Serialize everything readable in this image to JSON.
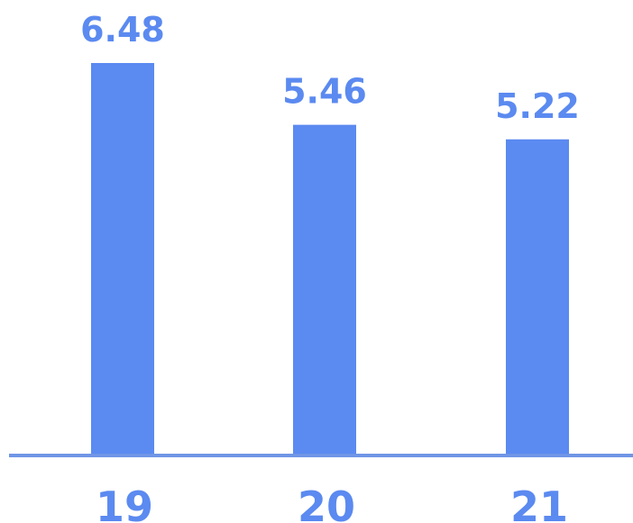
{
  "chart_data": {
    "type": "bar",
    "categories": [
      "19",
      "20",
      "21"
    ],
    "values": [
      6.48,
      5.46,
      5.22
    ],
    "value_labels": [
      "6.48",
      "5.46",
      "5.22"
    ],
    "title": "",
    "xlabel": "",
    "ylabel": "",
    "ylim": [
      0,
      6.48
    ],
    "grid": false,
    "legend": "none",
    "colors": {
      "bar": "#5b8af0",
      "label": "#5b8af0",
      "baseline": "#6f95e6"
    }
  }
}
